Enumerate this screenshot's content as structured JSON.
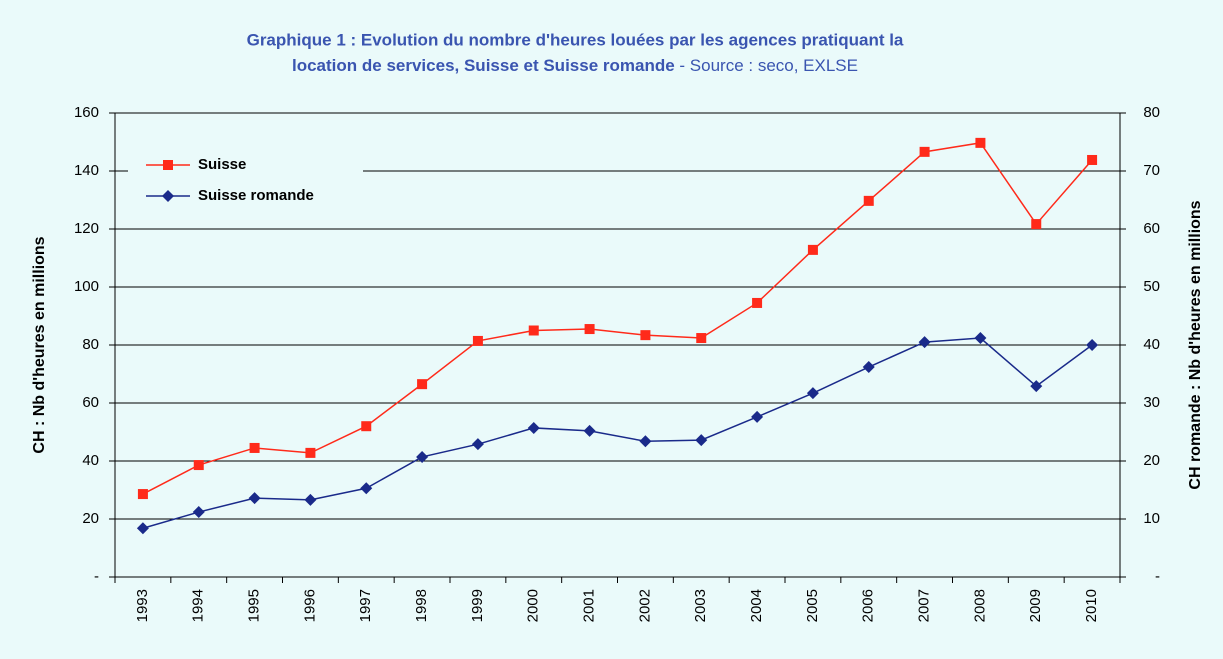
{
  "chart_data": {
    "type": "line",
    "title": [
      "Graphique 1 : Evolution du nombre d'heures louées par les agences pratiquant la",
      "location de services, Suisse et Suisse romande"
    ],
    "subtitle": " - Source : seco, EXLSE",
    "ylabel": "CH : Nb d'heures en millions",
    "y2label": "CH romande : Nb d'heures en millions",
    "categories": [
      "1993",
      "1994",
      "1995",
      "1996",
      "1997",
      "1998",
      "1999",
      "2000",
      "2001",
      "2002",
      "2003",
      "2004",
      "2005",
      "2006",
      "2007",
      "2008",
      "2009",
      "2010"
    ],
    "series": [
      {
        "name": "Suisse",
        "color": "#ff2a1a",
        "marker": "square",
        "values": [
          28.6,
          38.6,
          44.5,
          42.8,
          52,
          66.5,
          81.4,
          85,
          85.5,
          83.4,
          82.4,
          94.5,
          112.8,
          129.7,
          146.6,
          149.7,
          121.7,
          143.8
        ]
      },
      {
        "name": "Suisse romande",
        "color": "#1a2a8a",
        "marker": "diamond",
        "axis": "y2",
        "values": [
          8.4,
          11.2,
          13.6,
          13.3,
          15.3,
          20.7,
          22.9,
          25.7,
          25.2,
          23.4,
          23.6,
          27.6,
          31.7,
          36.2,
          40.5,
          41.2,
          32.9,
          40
        ]
      }
    ],
    "ylim": [
      0,
      160
    ],
    "yticks": [
      {
        "value": 0,
        "label": "-"
      },
      20,
      40,
      60,
      80,
      100,
      120,
      140,
      160
    ],
    "y2lim": [
      0,
      80
    ],
    "y2ticks": [
      {
        "value": 0,
        "label": "-"
      },
      10,
      20,
      30,
      40,
      50,
      60,
      70,
      80
    ],
    "grid": true,
    "legend": "upper left"
  }
}
